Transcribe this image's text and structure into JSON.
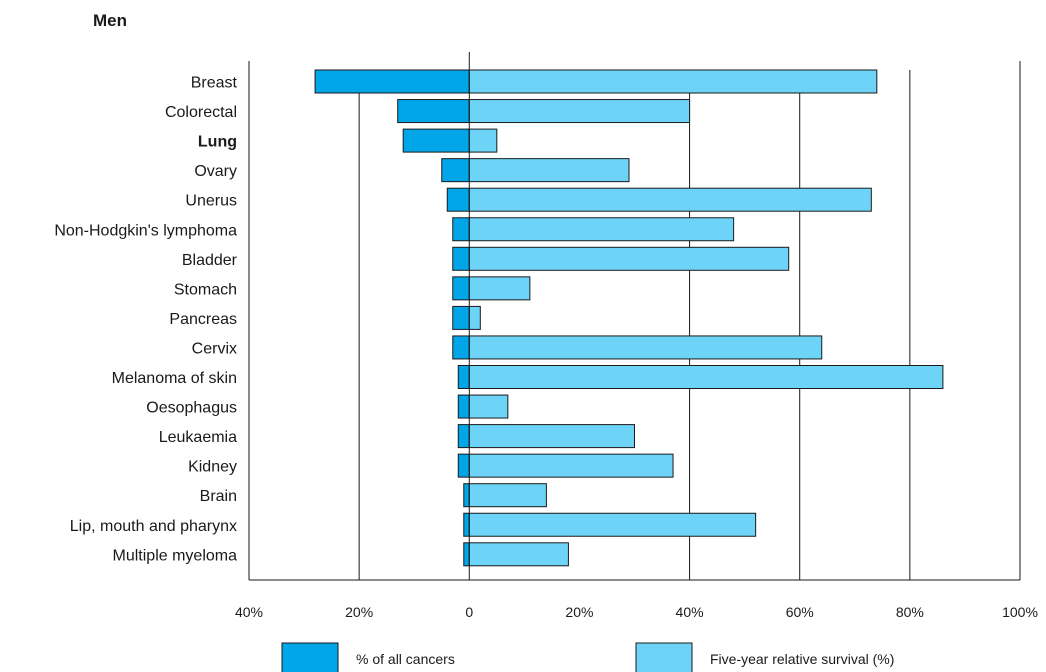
{
  "chart_data": {
    "type": "bar",
    "title": "Men",
    "categories": [
      "Breast",
      "Colorectal",
      "Lung",
      "Ovary",
      "Unerus",
      "Non-Hodgkin's lymphoma",
      "Bladder",
      "Stomach",
      "Pancreas",
      "Cervix",
      "Melanoma of skin",
      "Oesophagus",
      "Leukaemia",
      "Kidney",
      "Brain",
      "Lip, mouth and pharynx",
      "Multiple myeloma"
    ],
    "highlight_category": "Lung",
    "series": [
      {
        "name": "% of all cancers",
        "color": "#00A6E8",
        "direction": "left",
        "values": [
          28,
          13,
          12,
          5,
          4,
          3,
          3,
          3,
          3,
          3,
          2,
          2,
          2,
          2,
          1,
          1,
          1
        ]
      },
      {
        "name": "Five-year relative survival (%)",
        "color": "#6DD3F7",
        "direction": "right",
        "values": [
          74,
          40,
          5,
          29,
          73,
          48,
          58,
          11,
          2,
          64,
          86,
          7,
          30,
          37,
          14,
          52,
          18
        ]
      }
    ],
    "xlim": [
      -40,
      100
    ],
    "tick_labels": [
      "40%",
      "20%",
      "0",
      "20%",
      "40%",
      "60%",
      "80%",
      "100%"
    ],
    "tick_values": [
      -40,
      -20,
      0,
      20,
      40,
      60,
      80,
      100
    ],
    "gridlines": [
      -20,
      40,
      60,
      80
    ],
    "legend_position": "bottom"
  }
}
